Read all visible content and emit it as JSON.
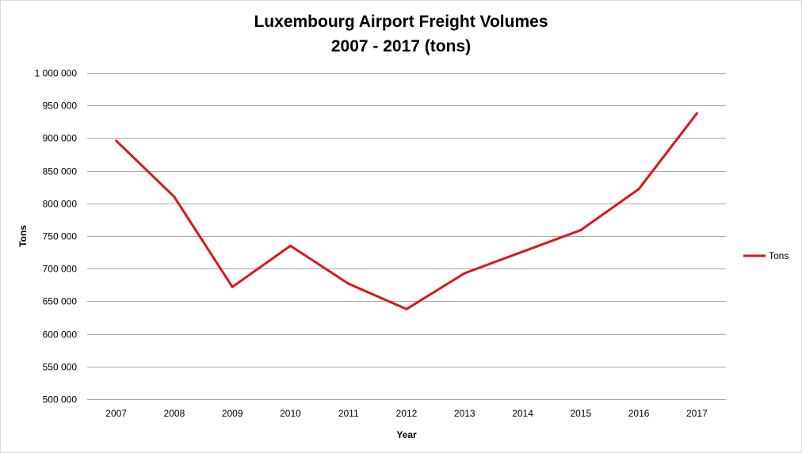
{
  "chart_data": {
    "type": "line",
    "title_lines": [
      "Luxembourg Airport Freight Volumes",
      "2007 - 2017 (tons)"
    ],
    "xlabel": "Year",
    "ylabel": "Tons",
    "categories": [
      "2007",
      "2008",
      "2009",
      "2010",
      "2011",
      "2012",
      "2013",
      "2014",
      "2015",
      "2016",
      "2017"
    ],
    "series": [
      {
        "name": "Tons",
        "color": "#d9171c",
        "values": [
          896000,
          810000,
          672000,
          735000,
          677000,
          638000,
          693000,
          726000,
          759000,
          822000,
          938000
        ]
      }
    ],
    "ylim": [
      500000,
      1000000
    ],
    "yticks": [
      500000,
      550000,
      600000,
      650000,
      700000,
      750000,
      800000,
      850000,
      900000,
      950000,
      1000000
    ],
    "ytick_labels": [
      "500 000",
      "550 000",
      "600 000",
      "650 000",
      "700 000",
      "750 000",
      "800 000",
      "850 000",
      "900 000",
      "950 000",
      "1 000 000"
    ],
    "grid": true,
    "legend": "right"
  }
}
